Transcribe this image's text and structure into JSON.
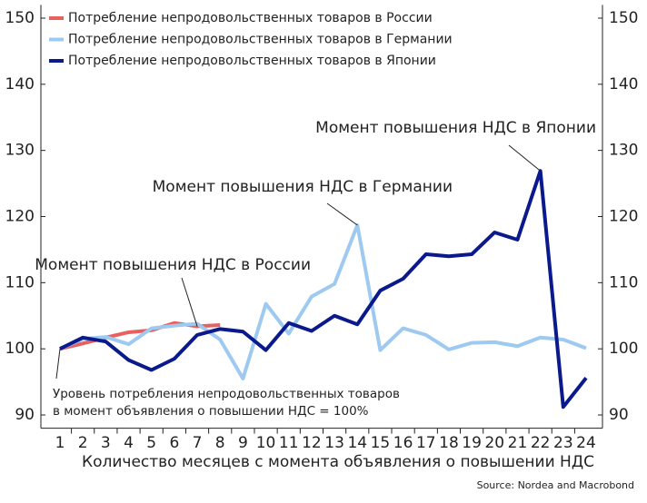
{
  "chart_data": {
    "type": "line",
    "categories": [
      "1",
      "2",
      "3",
      "4",
      "5",
      "6",
      "7",
      "8",
      "9",
      "10",
      "11",
      "12",
      "13",
      "14",
      "15",
      "16",
      "17",
      "18",
      "19",
      "20",
      "21",
      "22",
      "23",
      "24"
    ],
    "series": [
      {
        "name": "Потребление непродовольственных товаров в России",
        "color": "#e8605f",
        "values": [
          100.0,
          100.8,
          101.7,
          102.5,
          102.8,
          103.9,
          103.4,
          103.6,
          null,
          null,
          null,
          null,
          null,
          null,
          null,
          null,
          null,
          null,
          null,
          null,
          null,
          null,
          null,
          null
        ]
      },
      {
        "name": "Потребление непродовольственных товаров в Германии",
        "color": "#9ec9f0",
        "values": [
          100.0,
          101.5,
          101.8,
          100.7,
          103.1,
          103.5,
          103.8,
          101.4,
          95.5,
          106.8,
          102.3,
          107.9,
          109.8,
          118.7,
          99.8,
          103.1,
          102.1,
          99.9,
          100.9,
          101.0,
          100.4,
          101.7,
          101.4,
          100.1
        ]
      },
      {
        "name": "Потребление непродовольственных товаров в Японии",
        "color": "#0a1a8c",
        "values": [
          100.0,
          101.7,
          101.1,
          98.3,
          96.8,
          98.5,
          102.1,
          103.0,
          102.6,
          99.8,
          103.9,
          102.7,
          105.0,
          103.7,
          108.8,
          110.6,
          114.3,
          114.0,
          114.3,
          117.6,
          116.5,
          126.9,
          91.2,
          95.6
        ]
      }
    ],
    "xlabel": "Количество месяцев с момента объявления о повышении НДС",
    "ylim": [
      88,
      152
    ],
    "yticks": [
      90,
      100,
      110,
      120,
      130,
      140,
      150
    ],
    "y2lim": [
      88,
      152
    ],
    "y2ticks": [
      90,
      100,
      110,
      120,
      130,
      140,
      150
    ],
    "legend": "top-left",
    "annotations": [
      "Момент повышения НДС в Японии",
      "Момент повышения НДС в Германии",
      "Момент повышения НДС в России"
    ],
    "note": [
      "Уровень потребления непродовольственных товаров",
      "в момент объявления о повышении НДС = 100%"
    ],
    "source": "Source: Nordea and Macrobond"
  }
}
